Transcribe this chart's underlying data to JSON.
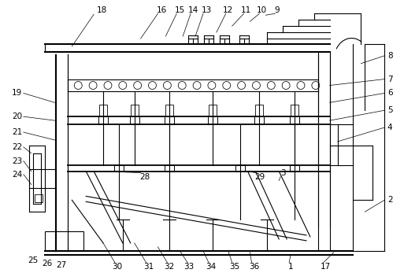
{
  "bg_color": "#ffffff",
  "line_color": "#000000",
  "fig_width": 5.13,
  "fig_height": 3.47,
  "dpi": 100
}
